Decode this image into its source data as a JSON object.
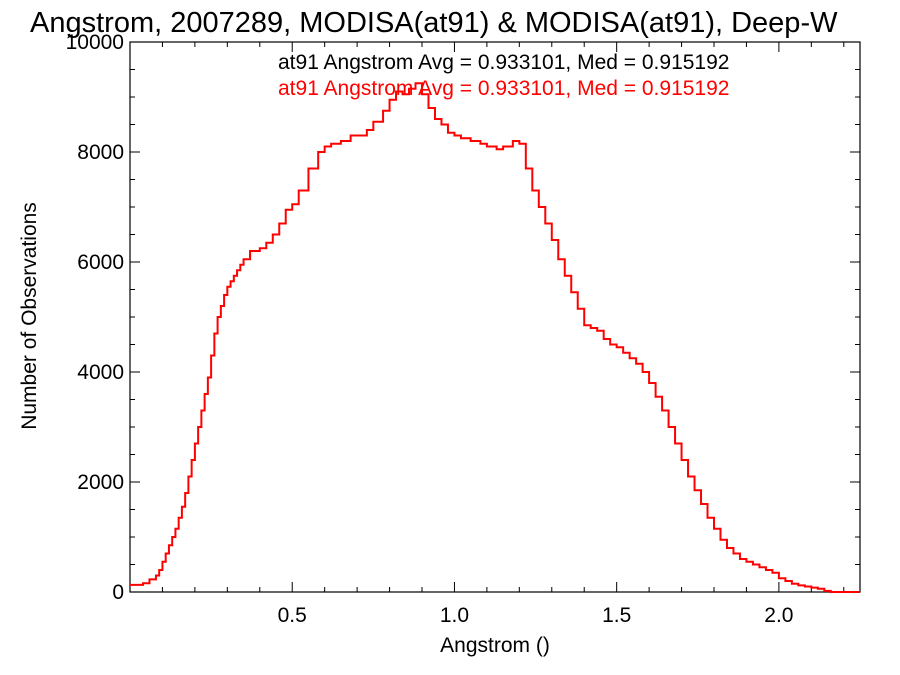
{
  "chart_data": {
    "type": "line",
    "title": "Angstrom, 2007289, MODISA(at91) & MODISA(at91), Deep-W",
    "xlabel": "Angstrom ()",
    "ylabel": "Number of Observations",
    "xlim": [
      0.0,
      2.25
    ],
    "ylim": [
      0,
      10000
    ],
    "xticks": [
      0.5,
      1.0,
      1.5,
      2.0
    ],
    "xtick_labels": [
      "0.5",
      "1.0",
      "1.5",
      "2.0"
    ],
    "yticks": [
      0,
      2000,
      4000,
      6000,
      8000,
      10000
    ],
    "ytick_labels": [
      "0",
      "2000",
      "4000",
      "6000",
      "8000",
      "10000"
    ],
    "grid": false,
    "legend_position": "top",
    "annotations": [
      {
        "text": "at91 Angstrom Avg = 0.933101, Med = 0.915192",
        "color": "#000000"
      },
      {
        "text": "at91 Angstrom Avg = 0.933101, Med = 0.915192",
        "color": "#ff0000"
      }
    ],
    "series": [
      {
        "color": "#ff0000",
        "step": true,
        "x": [
          0.0,
          0.04,
          0.06,
          0.08,
          0.09,
          0.1,
          0.11,
          0.12,
          0.13,
          0.14,
          0.15,
          0.16,
          0.17,
          0.18,
          0.19,
          0.2,
          0.21,
          0.22,
          0.23,
          0.24,
          0.25,
          0.26,
          0.27,
          0.28,
          0.29,
          0.3,
          0.31,
          0.32,
          0.33,
          0.34,
          0.35,
          0.37,
          0.4,
          0.42,
          0.44,
          0.46,
          0.48,
          0.5,
          0.52,
          0.55,
          0.58,
          0.6,
          0.62,
          0.65,
          0.68,
          0.7,
          0.73,
          0.75,
          0.78,
          0.8,
          0.82,
          0.84,
          0.86,
          0.88,
          0.9,
          0.92,
          0.94,
          0.96,
          0.98,
          1.0,
          1.02,
          1.05,
          1.08,
          1.1,
          1.13,
          1.15,
          1.18,
          1.2,
          1.22,
          1.24,
          1.26,
          1.28,
          1.3,
          1.32,
          1.34,
          1.36,
          1.38,
          1.4,
          1.42,
          1.44,
          1.46,
          1.48,
          1.5,
          1.52,
          1.54,
          1.56,
          1.58,
          1.6,
          1.62,
          1.64,
          1.66,
          1.68,
          1.7,
          1.72,
          1.74,
          1.76,
          1.78,
          1.8,
          1.82,
          1.84,
          1.86,
          1.88,
          1.9,
          1.92,
          1.94,
          1.96,
          1.98,
          2.0,
          2.02,
          2.04,
          2.06,
          2.08,
          2.1,
          2.12,
          2.14,
          2.16,
          2.25
        ],
        "y": [
          130,
          160,
          230,
          300,
          400,
          550,
          700,
          850,
          1000,
          1150,
          1350,
          1550,
          1800,
          2100,
          2400,
          2700,
          3000,
          3300,
          3600,
          3900,
          4300,
          4700,
          5000,
          5200,
          5400,
          5550,
          5650,
          5750,
          5850,
          5950,
          6050,
          6200,
          6250,
          6350,
          6500,
          6700,
          6950,
          7050,
          7300,
          7700,
          8000,
          8100,
          8150,
          8200,
          8300,
          8300,
          8400,
          8550,
          8750,
          8950,
          9100,
          9050,
          9150,
          9250,
          9050,
          8800,
          8600,
          8500,
          8350,
          8300,
          8250,
          8200,
          8150,
          8100,
          8050,
          8100,
          8200,
          8150,
          7700,
          7300,
          7000,
          6700,
          6400,
          6050,
          5750,
          5450,
          5150,
          4850,
          4800,
          4750,
          4600,
          4500,
          4450,
          4350,
          4250,
          4150,
          4000,
          3800,
          3550,
          3300,
          3000,
          2700,
          2400,
          2100,
          1850,
          1600,
          1350,
          1150,
          950,
          800,
          700,
          600,
          550,
          500,
          450,
          400,
          350,
          250,
          200,
          150,
          120,
          100,
          80,
          60,
          20,
          0,
          0
        ]
      }
    ]
  }
}
